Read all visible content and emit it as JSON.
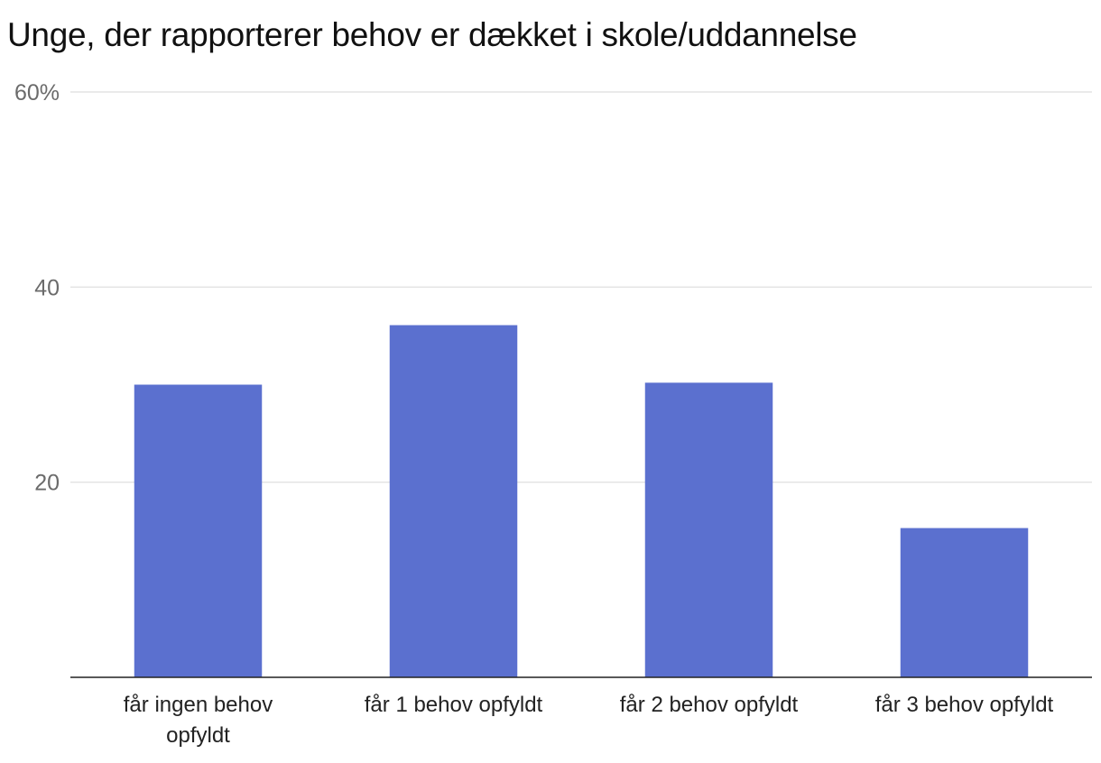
{
  "chart_data": {
    "type": "bar",
    "title": "Unge, der rapporterer behov er dækket i skole/uddannelse",
    "xlabel": "",
    "ylabel": "",
    "categories": [
      [
        "får ingen behov",
        "opfyldt"
      ],
      [
        "får 1 behov opfyldt"
      ],
      [
        "får 2 behov opfyldt"
      ],
      [
        "får 3 behov opfyldt"
      ]
    ],
    "values": [
      30,
      36.1,
      30.2,
      15.3
    ],
    "ylim": [
      0,
      60
    ],
    "yticks": [
      {
        "value": 20,
        "label": "20"
      },
      {
        "value": 40,
        "label": "40"
      },
      {
        "value": 60,
        "label": "60%"
      }
    ],
    "grid": true,
    "bar_color": "#5b70cf"
  }
}
